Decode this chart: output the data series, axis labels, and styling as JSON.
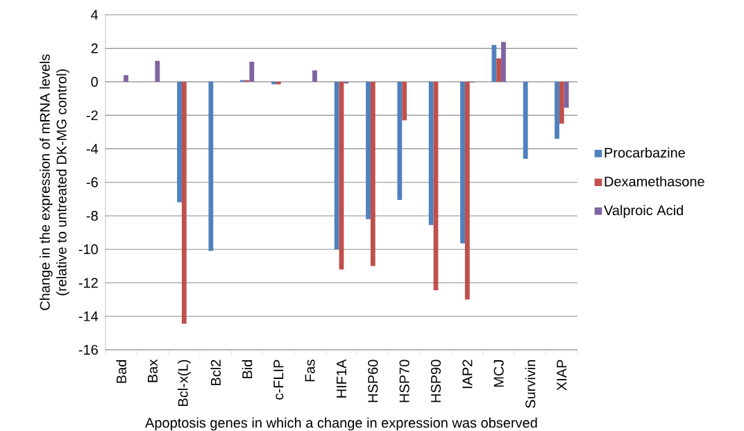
{
  "chart_data": {
    "type": "bar",
    "xlabel": "Apoptosis genes in which a change in expression was observed",
    "ylabel": "Change in the expression of mRNA levels\n(relative to untreated DK-MG control)",
    "categories": [
      "Bad",
      "Bax",
      "Bcl-x(L)",
      "Bcl2",
      "Bid",
      "c-FLIP",
      "Fas",
      "HIF1A",
      "HSP60",
      "HSP70",
      "HSP90",
      "IAP2",
      "MCJ",
      "Survivin",
      "XIAP"
    ],
    "series": [
      {
        "name": "Procarbazine",
        "color": "#4f81bd",
        "values": [
          0,
          0,
          -7.2,
          -10.1,
          0.1,
          -0.15,
          0,
          -10.0,
          -8.2,
          -7.05,
          -8.55,
          -9.65,
          2.2,
          -4.6,
          -3.4
        ]
      },
      {
        "name": "Dexamethasone",
        "color": "#c0504d",
        "values": [
          0,
          0,
          -14.45,
          0,
          0.1,
          -0.15,
          0,
          -11.2,
          -11.0,
          -2.3,
          -12.45,
          -13.0,
          1.4,
          0,
          -2.5
        ]
      },
      {
        "name": "Valproic Acid",
        "color": "#8064a2",
        "values": [
          0.4,
          1.25,
          0,
          0,
          1.2,
          0,
          0.68,
          -0.1,
          0,
          0,
          0,
          -0.05,
          2.38,
          0,
          -1.55
        ]
      }
    ],
    "ylim": [
      -16,
      4
    ],
    "yticks": [
      -16,
      -14,
      -12,
      -10,
      -8,
      -6,
      -4,
      -2,
      0,
      2,
      4
    ],
    "grid": "y",
    "legend": "right"
  }
}
